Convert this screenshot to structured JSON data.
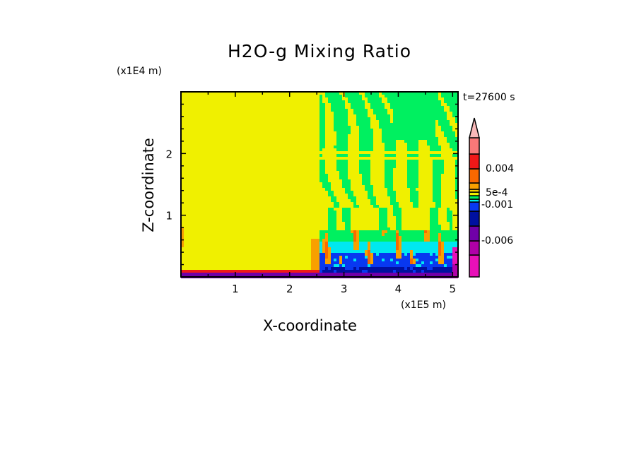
{
  "chart_data": {
    "type": "heatmap",
    "title": "H2O-g Mixing Ratio",
    "xlabel": "X-coordinate",
    "ylabel": "Z-coordinate",
    "x_unit": "(x1E5 m)",
    "y_unit": "(x1E4 m)",
    "annotation": "t=27600 s",
    "xlim": [
      0,
      5.1
    ],
    "ylim": [
      0,
      3.0
    ],
    "x_ticks": [
      "1",
      "2",
      "3",
      "4",
      "5"
    ],
    "x_tick_values": [
      1,
      2,
      3,
      4,
      5
    ],
    "y_ticks": [
      "1",
      "2"
    ],
    "y_tick_values": [
      1,
      2
    ],
    "colorbar": {
      "colors_bottom_to_top": [
        "#e810b8",
        "#b000a8",
        "#7000a8",
        "#0010a0",
        "#0838f0",
        "#00e8f0",
        "#00f060",
        "#f0f000",
        "#f8d000",
        "#f8a000",
        "#f86800",
        "#f01818",
        "#f87878",
        "#f8b8b8"
      ],
      "labels": [
        "0.004",
        "5e-4",
        "-0.001",
        "-0.006"
      ],
      "label_values": [
        0.004,
        0.0005,
        -0.001,
        -0.006
      ],
      "extend": "max"
    },
    "description_regions": {
      "left_domain_x": [
        0,
        2.55
      ],
      "right_domain_x": [
        2.55,
        5.1
      ]
    }
  }
}
